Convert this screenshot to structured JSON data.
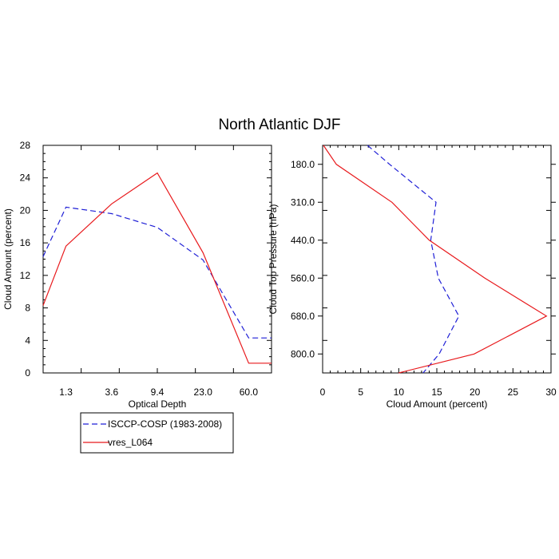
{
  "figure_title": "North Atlantic DJF",
  "series_styles": {
    "obs_color": "#1f1fd6",
    "model_color": "#e8191c"
  },
  "legend": {
    "entries": [
      {
        "label": "ISCCP-COSP (1983-2008)",
        "color": "#1f1fd6",
        "dash": "dashed"
      },
      {
        "label": "vres_L064",
        "color": "#e8191c",
        "dash": "solid"
      }
    ]
  },
  "chart_data": [
    {
      "type": "line",
      "xlabel": "Optical Depth",
      "ylabel": "Cloud Amount (percent)",
      "xscale": "categorical",
      "x_tick_labels": [
        "1.3",
        "3.6",
        "9.4",
        "23.0",
        "60.0"
      ],
      "x_range_index": [
        0,
        6
      ],
      "ylim": [
        0,
        28
      ],
      "y_ticks": [
        0,
        4,
        8,
        12,
        16,
        20,
        24,
        28
      ],
      "series": [
        {
          "name": "ISCCP-COSP (1983-2008)",
          "color": "#1f1fd6",
          "dash": "dashed",
          "x_index": [
            0,
            1,
            2,
            3,
            4,
            5,
            6
          ],
          "y": [
            14.3,
            20.4,
            19.6,
            17.9,
            13.9,
            4.3,
            4.3
          ]
        },
        {
          "name": "vres_L064",
          "color": "#e8191c",
          "dash": "solid",
          "x_index": [
            0,
            1,
            2,
            3,
            4,
            5,
            6
          ],
          "y": [
            8.3,
            15.6,
            20.8,
            24.6,
            14.8,
            1.2,
            1.2
          ]
        }
      ]
    },
    {
      "type": "line",
      "xlabel": "Cloud Amount (percent)",
      "ylabel": "Cloud Top Pressure (hPa)",
      "xlim": [
        0,
        30
      ],
      "x_ticks": [
        0,
        5,
        10,
        15,
        20,
        25,
        30
      ],
      "y_tick_labels": [
        "180.0",
        "310.0",
        "440.0",
        "560.0",
        "680.0",
        "800.0"
      ],
      "y_range_index": [
        0,
        7
      ],
      "y_inverted": true,
      "series": [
        {
          "name": "ISCCP-COSP (1983-2008)",
          "color": "#1f1fd6",
          "dash": "dashed",
          "y_index": [
            0,
            1,
            2,
            3,
            4,
            5,
            6,
            7
          ],
          "x": [
            5.9,
            8.8,
            14.9,
            14.2,
            15.2,
            17.9,
            15.3,
            13.2
          ]
        },
        {
          "name": "vres_L064",
          "color": "#e8191c",
          "dash": "solid",
          "y_index": [
            0,
            1,
            2,
            3,
            4,
            5,
            6,
            7
          ],
          "x": [
            0.1,
            1.8,
            9.1,
            14.0,
            21.3,
            29.4,
            19.9,
            10.0
          ]
        }
      ]
    }
  ]
}
